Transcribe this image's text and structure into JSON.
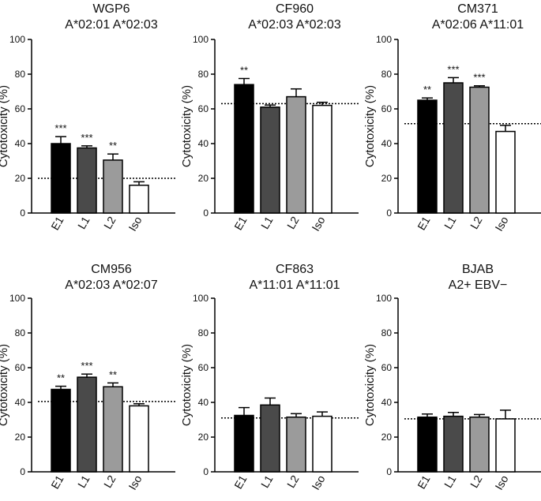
{
  "figure": {
    "colors": {
      "E1": "#000000",
      "L1": "#4a4a4a",
      "L2": "#9b9b9b",
      "Iso": "#ffffff",
      "stroke": "#000000"
    }
  },
  "chart_data": [
    {
      "type": "bar",
      "title": [
        "WGP6",
        "A*02:01 A*02:03"
      ],
      "ylabel": "Cytotoxicity (%)",
      "categories": [
        "E1",
        "L1",
        "L2",
        "Iso"
      ],
      "values": [
        40,
        37.5,
        30.5,
        16
      ],
      "errors": [
        4,
        1.2,
        3.5,
        2
      ],
      "significance": [
        "***",
        "***",
        "**",
        ""
      ],
      "baseline": 20,
      "ylim": [
        0,
        100
      ],
      "yticks": [
        0,
        20,
        40,
        60,
        80,
        100
      ]
    },
    {
      "type": "bar",
      "title": [
        "CF960",
        "A*02:03 A*02:03"
      ],
      "ylabel": "Cytotoxicity (%)",
      "categories": [
        "E1",
        "L1",
        "L2",
        "Iso"
      ],
      "values": [
        74,
        61,
        67,
        62
      ],
      "errors": [
        3.5,
        1.2,
        4.5,
        1.8
      ],
      "significance": [
        "**",
        "",
        "",
        ""
      ],
      "baseline": 63,
      "ylim": [
        0,
        100
      ],
      "yticks": [
        0,
        20,
        40,
        60,
        80,
        100
      ]
    },
    {
      "type": "bar",
      "title": [
        "CM371",
        "A*02:06 A*11:01"
      ],
      "ylabel": "Cytotoxicity (%)",
      "categories": [
        "E1",
        "L1",
        "L2",
        "Iso"
      ],
      "values": [
        65,
        75,
        72.5,
        47
      ],
      "errors": [
        1.3,
        3,
        0.8,
        3.5
      ],
      "significance": [
        "**",
        "***",
        "***",
        ""
      ],
      "baseline": 51.5,
      "ylim": [
        0,
        100
      ],
      "yticks": [
        0,
        20,
        40,
        60,
        80,
        100
      ]
    },
    {
      "type": "bar",
      "title": [
        "CM956",
        "A*02:03 A*02:07"
      ],
      "ylabel": "Cytotoxicity (%)",
      "categories": [
        "E1",
        "L1",
        "L2",
        "Iso"
      ],
      "values": [
        47.5,
        54.5,
        49,
        38
      ],
      "errors": [
        1.8,
        1.8,
        2.2,
        1.2
      ],
      "significance": [
        "**",
        "***",
        "**",
        ""
      ],
      "baseline": 40.5,
      "ylim": [
        0,
        100
      ],
      "yticks": [
        0,
        20,
        40,
        60,
        80,
        100
      ]
    },
    {
      "type": "bar",
      "title": [
        "CF863",
        "A*11:01 A*11:01"
      ],
      "ylabel": "Cytotoxicity (%)",
      "categories": [
        "E1",
        "L1",
        "L2",
        "Iso"
      ],
      "values": [
        32.5,
        38.5,
        31.5,
        32
      ],
      "errors": [
        4.5,
        4,
        2,
        2.5
      ],
      "significance": [
        "",
        "",
        "",
        ""
      ],
      "baseline": 31,
      "ylim": [
        0,
        100
      ],
      "yticks": [
        0,
        20,
        40,
        60,
        80,
        100
      ]
    },
    {
      "type": "bar",
      "title": [
        "BJAB",
        "A2+ EBV−"
      ],
      "ylabel": "Cytotoxicity (%)",
      "categories": [
        "E1",
        "L1",
        "L2",
        "Iso"
      ],
      "values": [
        31.5,
        32,
        31.5,
        30.5
      ],
      "errors": [
        1.8,
        2.2,
        1.5,
        5
      ],
      "significance": [
        "",
        "",
        "",
        ""
      ],
      "baseline": 30.5,
      "ylim": [
        0,
        100
      ],
      "yticks": [
        0,
        20,
        40,
        60,
        80,
        100
      ]
    }
  ]
}
